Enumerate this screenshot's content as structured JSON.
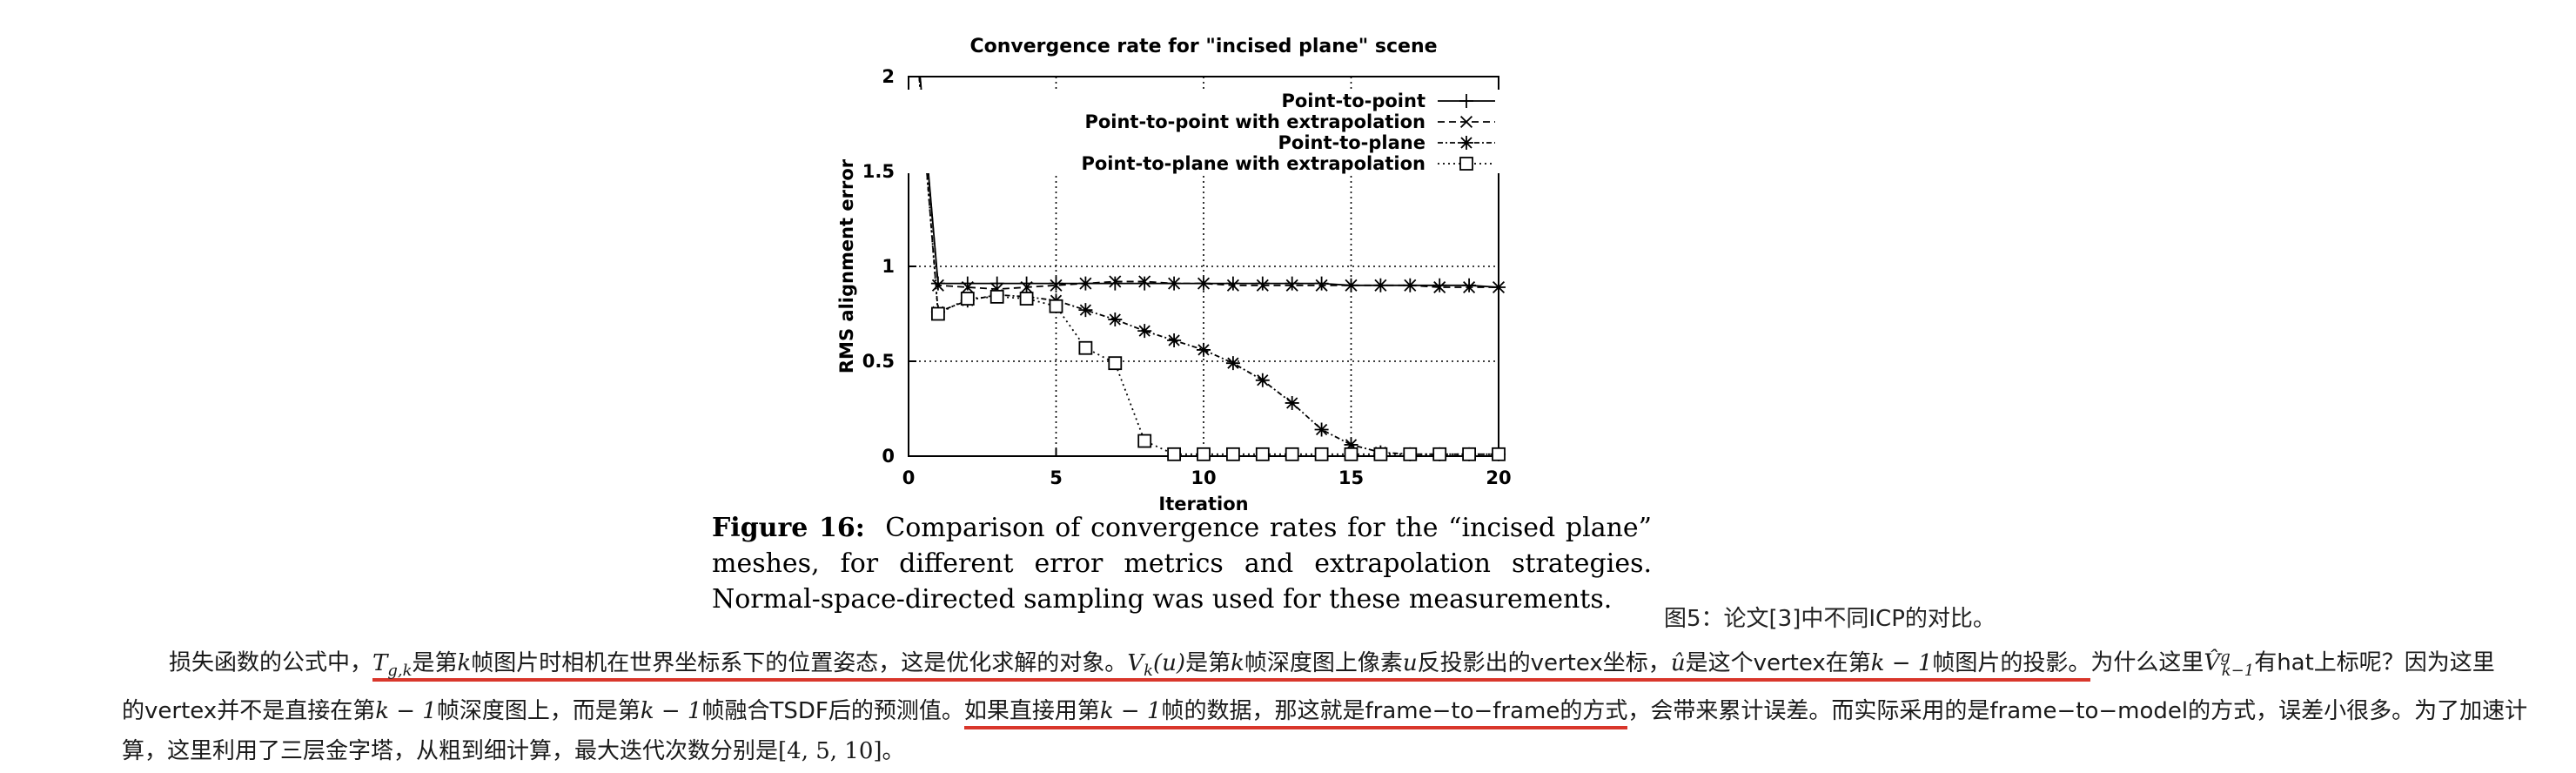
{
  "chart_data": {
    "type": "line",
    "title": "Convergence rate for \"incised plane\" scene",
    "xlabel": "Iteration",
    "ylabel": "RMS alignment error",
    "xlim": [
      0,
      20
    ],
    "ylim": [
      0,
      2
    ],
    "xticks": [
      0,
      5,
      10,
      15,
      20
    ],
    "yticks": [
      0,
      0.5,
      1,
      1.5,
      2
    ],
    "ytick_labels": [
      "0",
      "0.5",
      "1",
      "1.5",
      "2"
    ],
    "grid": true,
    "legend_position": "top-right",
    "series": [
      {
        "name": "Point-to-point",
        "marker": "plus",
        "dash": "none",
        "x": [
          0,
          1,
          2,
          3,
          4,
          5,
          6,
          7,
          8,
          9,
          10,
          11,
          12,
          13,
          14,
          15,
          16,
          17,
          18,
          19,
          20
        ],
        "y": [
          2.7,
          0.91,
          0.91,
          0.91,
          0.91,
          0.91,
          0.91,
          0.91,
          0.91,
          0.91,
          0.91,
          0.91,
          0.91,
          0.91,
          0.91,
          0.9,
          0.9,
          0.9,
          0.9,
          0.9,
          0.89
        ]
      },
      {
        "name": "Point-to-point with extrapolation",
        "marker": "x",
        "dash": "8,5",
        "x": [
          0,
          1,
          2,
          3,
          4,
          5,
          6,
          7,
          8,
          9,
          10,
          11,
          12,
          13,
          14,
          15,
          16,
          17,
          18,
          19,
          20
        ],
        "y": [
          2.7,
          0.9,
          0.89,
          0.88,
          0.89,
          0.9,
          0.91,
          0.92,
          0.92,
          0.91,
          0.91,
          0.9,
          0.9,
          0.9,
          0.9,
          0.9,
          0.9,
          0.9,
          0.89,
          0.89,
          0.89
        ]
      },
      {
        "name": "Point-to-plane",
        "marker": "star",
        "dash": "6,3,2,3",
        "x": [
          0,
          1,
          2,
          3,
          4,
          5,
          6,
          7,
          8,
          9,
          10,
          11,
          12,
          13,
          14,
          15,
          16,
          17,
          18,
          19,
          20
        ],
        "y": [
          2.7,
          0.76,
          0.82,
          0.85,
          0.84,
          0.82,
          0.77,
          0.72,
          0.66,
          0.61,
          0.56,
          0.49,
          0.4,
          0.28,
          0.14,
          0.06,
          0.02,
          0.01,
          0.01,
          0.01,
          0.01
        ]
      },
      {
        "name": "Point-to-plane with extrapolation",
        "marker": "square",
        "dash": "2,4",
        "x": [
          0,
          1,
          2,
          3,
          4,
          5,
          6,
          7,
          8,
          9,
          10,
          11,
          12,
          13,
          14,
          15,
          16,
          17,
          18,
          19,
          20
        ],
        "y": [
          2.7,
          0.75,
          0.83,
          0.84,
          0.83,
          0.79,
          0.57,
          0.49,
          0.08,
          0.01,
          0.01,
          0.01,
          0.01,
          0.01,
          0.01,
          0.01,
          0.01,
          0.01,
          0.01,
          0.01,
          0.01
        ]
      }
    ]
  },
  "caption": {
    "label": "Figure 16:",
    "text": "Comparison of convergence rates for the “incised plane” meshes, for different error metrics and extrapolation strategies. Normal-space-directed sampling was used for these measurements."
  },
  "figure_note": "图5：论文[3]中不同ICP的对比。",
  "paragraph": {
    "l1_a": "损失函数的公式中，",
    "l1_T": "T",
    "l1_Tsub": "g,k",
    "l1_b": "是第",
    "l1_k1": "k",
    "l1_c": "帧图片时相机在世界坐标系下的位置姿态，这是优化求解的对象。",
    "l1_V": "V",
    "l1_Vsub": "k",
    "l1_Varg": "(u)",
    "l1_d": "是第",
    "l1_k2": "k",
    "l1_e": "帧深度图上像素",
    "l1_u": "u",
    "l1_f": "反投影出的vertex坐标，",
    "l1_uhat": "û",
    "l1_g": "是这个vertex在第",
    "l1_km1a": "k − 1",
    "l1_h": "帧图片的投影。",
    "l1_i": "为什么这里",
    "l1_Vhat": "V̂",
    "l1_Vhatsup": "g",
    "l1_Vhatsub": "k−1",
    "l1_j": "有hat上标呢？因为这里",
    "l2_a": "的vertex并不是直接在第",
    "l2_km1a": "k − 1",
    "l2_b": "帧深度图上，而是第",
    "l2_km1b": "k − 1",
    "l2_c": "帧融合TSDF后的预测值。",
    "l2_d": "如果直接用第",
    "l2_km1c": "k − 1",
    "l2_e": "帧的数据，那这就是frame−to−frame的方式",
    "l2_f": "，会带来累计误差。而实际采用的是frame−to−model的方式，误差小很多。为了加速计",
    "l3_a": "算，这里利用了三层金字塔，从粗到细计算，最大迭代次数分别是",
    "l3_b": "[4, 5, 10]",
    "l3_c": "。"
  }
}
